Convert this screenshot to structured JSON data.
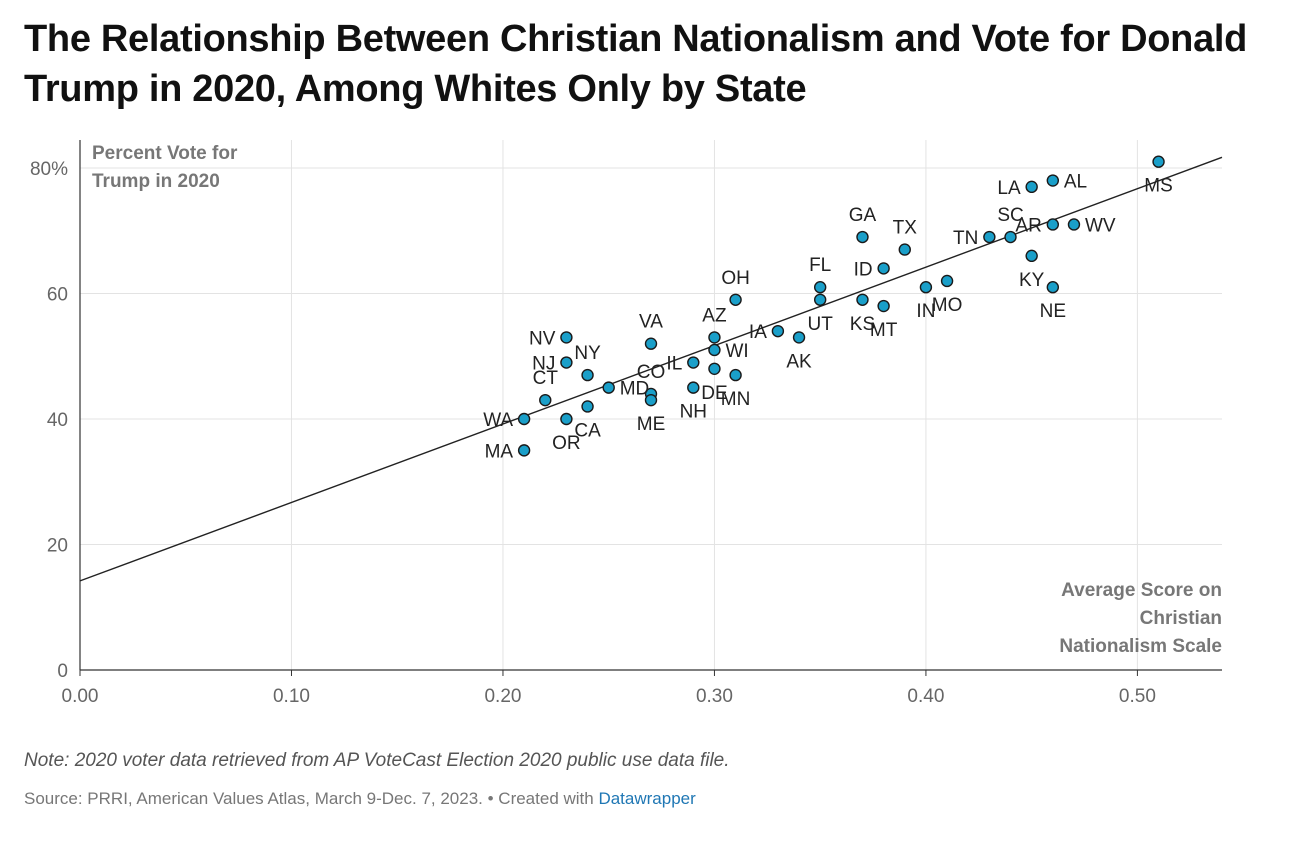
{
  "title": "The Relationship Between Christian Nationalism and Vote for Donald Trump in 2020, Among Whites Only by State",
  "footer": {
    "note": "Note: 2020 voter data retrieved from AP VoteCast Election 2020 public use data file.",
    "source_text": "Source: PRRI, American Values Atlas, March 9-Dec. 7, 2023. • Created with ",
    "source_link": "Datawrapper"
  },
  "colors": {
    "point_fill": "#1a9fc9",
    "point_stroke": "#1a1a1a",
    "grid": "#e3e3e3",
    "trend": "#222222"
  },
  "chart_data": {
    "type": "scatter",
    "title": "The Relationship Between Christian Nationalism and Vote for Donald Trump in 2020, Among Whites Only by State",
    "ylabel_lines": [
      "Percent Vote for",
      "Trump in 2020"
    ],
    "xlabel_lines": [
      "Average Score on",
      "Christian",
      "Nationalism Scale"
    ],
    "xlim": [
      0,
      0.54
    ],
    "ylim": [
      0,
      80
    ],
    "xticks": [
      {
        "v": 0,
        "label": "0.00"
      },
      {
        "v": 0.1,
        "label": "0.10"
      },
      {
        "v": 0.2,
        "label": "0.20"
      },
      {
        "v": 0.3,
        "label": "0.30"
      },
      {
        "v": 0.4,
        "label": "0.40"
      },
      {
        "v": 0.5,
        "label": "0.50"
      }
    ],
    "yticks": [
      {
        "v": 0,
        "label": "0"
      },
      {
        "v": 20,
        "label": "20"
      },
      {
        "v": 40,
        "label": "40"
      },
      {
        "v": 60,
        "label": "60"
      },
      {
        "v": 80,
        "label": "80%"
      }
    ],
    "trendline": {
      "intercept": 14.2,
      "slope": 125
    },
    "points": [
      {
        "state": "MS",
        "x": 0.51,
        "y": 81,
        "pos": "below"
      },
      {
        "state": "AL",
        "x": 0.46,
        "y": 78,
        "pos": "right"
      },
      {
        "state": "LA",
        "x": 0.45,
        "y": 77,
        "pos": "left"
      },
      {
        "state": "WV",
        "x": 0.47,
        "y": 71,
        "pos": "right"
      },
      {
        "state": "AR",
        "x": 0.46,
        "y": 71,
        "pos": "left"
      },
      {
        "state": "SC",
        "x": 0.44,
        "y": 69,
        "pos": "above"
      },
      {
        "state": "TN",
        "x": 0.43,
        "y": 69,
        "pos": "left"
      },
      {
        "state": "GA",
        "x": 0.37,
        "y": 69,
        "pos": "above"
      },
      {
        "state": "TX",
        "x": 0.39,
        "y": 67,
        "pos": "above"
      },
      {
        "state": "KY",
        "x": 0.45,
        "y": 66,
        "pos": "below"
      },
      {
        "state": "ID",
        "x": 0.38,
        "y": 64,
        "pos": "left"
      },
      {
        "state": "MO",
        "x": 0.41,
        "y": 62,
        "pos": "below"
      },
      {
        "state": "IN",
        "x": 0.4,
        "y": 61,
        "pos": "below"
      },
      {
        "state": "NE",
        "x": 0.46,
        "y": 61,
        "pos": "below"
      },
      {
        "state": "FL",
        "x": 0.35,
        "y": 61,
        "pos": "above"
      },
      {
        "state": "UT",
        "x": 0.35,
        "y": 59,
        "pos": "below"
      },
      {
        "state": "KS",
        "x": 0.37,
        "y": 59,
        "pos": "below"
      },
      {
        "state": "OH",
        "x": 0.31,
        "y": 59,
        "pos": "above"
      },
      {
        "state": "MT",
        "x": 0.38,
        "y": 58,
        "pos": "below"
      },
      {
        "state": "IA",
        "x": 0.33,
        "y": 54,
        "pos": "left"
      },
      {
        "state": "AK",
        "x": 0.34,
        "y": 53,
        "pos": "below"
      },
      {
        "state": "AZ",
        "x": 0.3,
        "y": 53,
        "pos": "above"
      },
      {
        "state": "NV",
        "x": 0.23,
        "y": 53,
        "pos": "left"
      },
      {
        "state": "VA",
        "x": 0.27,
        "y": 52,
        "pos": "above"
      },
      {
        "state": "WI",
        "x": 0.3,
        "y": 51,
        "pos": "right"
      },
      {
        "state": "IL",
        "x": 0.29,
        "y": 49,
        "pos": "left"
      },
      {
        "state": "NJ",
        "x": 0.23,
        "y": 49,
        "pos": "left"
      },
      {
        "state": "NY",
        "x": 0.24,
        "y": 47,
        "pos": "above"
      },
      {
        "state": "CO",
        "x": 0.27,
        "y": 44,
        "pos": "above"
      },
      {
        "state": "DE",
        "x": 0.3,
        "y": 48,
        "pos": "below"
      },
      {
        "state": "MN",
        "x": 0.31,
        "y": 47,
        "pos": "below"
      },
      {
        "state": "CT",
        "x": 0.22,
        "y": 43,
        "pos": "above"
      },
      {
        "state": "MD",
        "x": 0.25,
        "y": 45,
        "pos": "right"
      },
      {
        "state": "NH",
        "x": 0.29,
        "y": 45,
        "pos": "below"
      },
      {
        "state": "ME",
        "x": 0.27,
        "y": 43,
        "pos": "below"
      },
      {
        "state": "CA",
        "x": 0.24,
        "y": 42,
        "pos": "below"
      },
      {
        "state": "WA",
        "x": 0.21,
        "y": 40,
        "pos": "left"
      },
      {
        "state": "OR",
        "x": 0.23,
        "y": 40,
        "pos": "below"
      },
      {
        "state": "MA",
        "x": 0.21,
        "y": 35,
        "pos": "left"
      }
    ]
  }
}
